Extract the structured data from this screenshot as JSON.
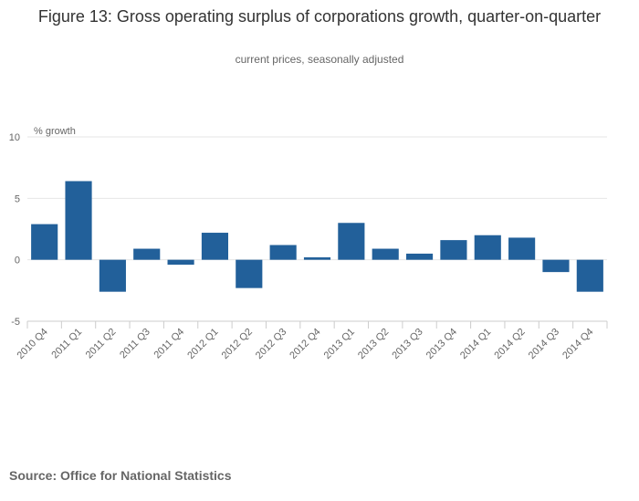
{
  "title": "Figure 13: Gross operating surplus of corporations growth, quarter-on-quarter",
  "subtitle": "current prices, seasonally adjusted",
  "source": "Source: Office for National Statistics",
  "colors": {
    "bar": "#22609a",
    "grid": "#e6e6e6",
    "axis": "#cccccc"
  },
  "chart_data": {
    "type": "bar",
    "ylabel": "% growth",
    "ylim": [
      -5,
      10
    ],
    "yticks": [
      -5,
      0,
      5,
      10
    ],
    "grid": true,
    "legend": "none",
    "categories": [
      "2010 Q4",
      "2011 Q1",
      "2011 Q2",
      "2011 Q3",
      "2011 Q4",
      "2012 Q1",
      "2012 Q2",
      "2012 Q3",
      "2012 Q4",
      "2013 Q1",
      "2013 Q2",
      "2013 Q3",
      "2013 Q4",
      "2014 Q1",
      "2014 Q2",
      "2014 Q3",
      "2014 Q4"
    ],
    "values": [
      2.9,
      6.4,
      -2.6,
      0.9,
      -0.4,
      2.2,
      -2.3,
      1.2,
      0.2,
      3.0,
      0.9,
      0.5,
      1.6,
      2.0,
      1.8,
      -1.0,
      -2.6
    ]
  }
}
